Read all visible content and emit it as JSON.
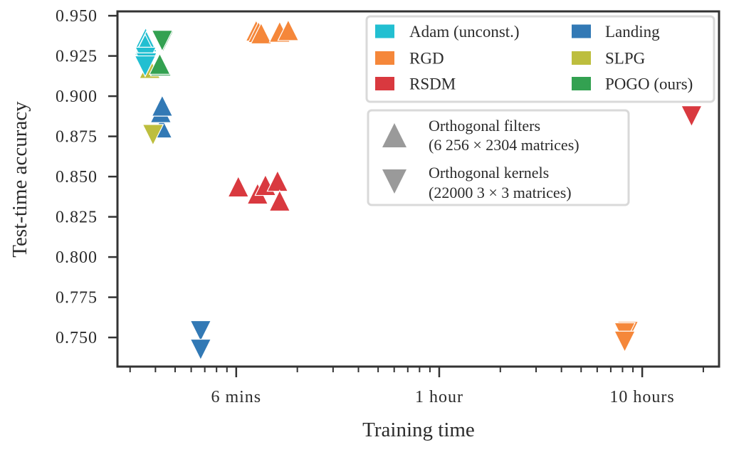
{
  "chart_data": {
    "type": "scatter",
    "title": "",
    "xlabel": "Training time",
    "ylabel": "Test-time accuracy",
    "xscale": "log",
    "xunit": "hours",
    "xlim": [
      0.026,
      23.9
    ],
    "ylim": [
      0.7319,
      0.9527
    ],
    "grid": false,
    "xticks": [
      {
        "value": 0.1,
        "label": "6 mins"
      },
      {
        "value": 1,
        "label": "1 hour"
      },
      {
        "value": 10,
        "label": "10 hours"
      }
    ],
    "xminor_ticks": [
      0.03,
      0.04,
      0.05,
      0.06,
      0.07,
      0.08,
      0.09,
      0.2,
      0.3,
      0.4,
      0.5,
      0.6,
      0.7,
      0.8,
      0.9,
      2,
      3,
      4,
      5,
      6,
      7,
      8,
      9,
      20
    ],
    "yticks": [
      {
        "value": 0.75,
        "label": "0.750"
      },
      {
        "value": 0.775,
        "label": "0.775"
      },
      {
        "value": 0.8,
        "label": "0.800"
      },
      {
        "value": 0.825,
        "label": "0.825"
      },
      {
        "value": 0.85,
        "label": "0.850"
      },
      {
        "value": 0.875,
        "label": "0.875"
      },
      {
        "value": 0.9,
        "label": "0.900"
      },
      {
        "value": 0.925,
        "label": "0.925"
      },
      {
        "value": 0.95,
        "label": "0.950"
      }
    ],
    "legend_placement": "top-right",
    "series": [
      {
        "name": "Adam (unconst.)",
        "color": "#22bfd1",
        "filters": [
          [
            0.0358,
            0.936
          ],
          [
            0.0361,
            0.934
          ],
          [
            0.0356,
            0.932
          ]
        ],
        "kernels": [
          [
            0.0358,
            0.924
          ],
          [
            0.0361,
            0.9205
          ],
          [
            0.0356,
            0.9186
          ]
        ]
      },
      {
        "name": "RGD",
        "color": "#f5873a",
        "filters": [
          [
            0.1254,
            0.9407
          ],
          [
            0.1288,
            0.9398
          ],
          [
            0.1327,
            0.939
          ],
          [
            0.1637,
            0.94
          ],
          [
            0.1804,
            0.941
          ]
        ],
        "kernels": [
          [
            8.5,
            0.7535
          ],
          [
            8.2,
            0.7527
          ],
          [
            8.2,
            0.7475
          ]
        ]
      },
      {
        "name": "RSDM",
        "color": "#d9393f",
        "filters": [
          [
            0.1024,
            0.8438
          ],
          [
            0.1274,
            0.8394
          ],
          [
            0.1393,
            0.8447
          ],
          [
            0.1598,
            0.8473
          ],
          [
            0.1637,
            0.835
          ]
        ],
        "kernels": [
          [
            17.5,
            0.8876
          ]
        ]
      },
      {
        "name": "Landing",
        "color": "#3279b5",
        "filters": [
          [
            0.0429,
            0.8805
          ],
          [
            0.0425,
            0.89
          ],
          [
            0.0432,
            0.894
          ]
        ],
        "kernels": [
          [
            0.0668,
            0.754
          ],
          [
            0.0668,
            0.7425
          ]
        ]
      },
      {
        "name": "SLPG",
        "color": "#bdbe3e",
        "filters": [
          [
            0.0375,
            0.9175
          ]
        ],
        "kernels": [
          [
            0.0389,
            0.876
          ]
        ]
      },
      {
        "name": "POGO (ours)",
        "color": "#33a151",
        "filters": [
          [
            0.0425,
            0.919
          ],
          [
            0.042,
            0.92
          ]
        ],
        "kernels": [
          [
            0.0436,
            0.934
          ],
          [
            0.0432,
            0.9345
          ]
        ]
      }
    ],
    "marker_legend": {
      "color": "#9a9a9a",
      "entries": [
        {
          "shape": "triangle-up",
          "lines": [
            "Orthogonal filters",
            "(6 256 × 2304 matrices)"
          ]
        },
        {
          "shape": "triangle-down",
          "lines": [
            "Orthogonal kernels",
            "(22000 3 × 3 matrices)"
          ]
        }
      ]
    },
    "colors": {
      "axis": "#333333",
      "legend_border": "#d9d9d9"
    }
  }
}
